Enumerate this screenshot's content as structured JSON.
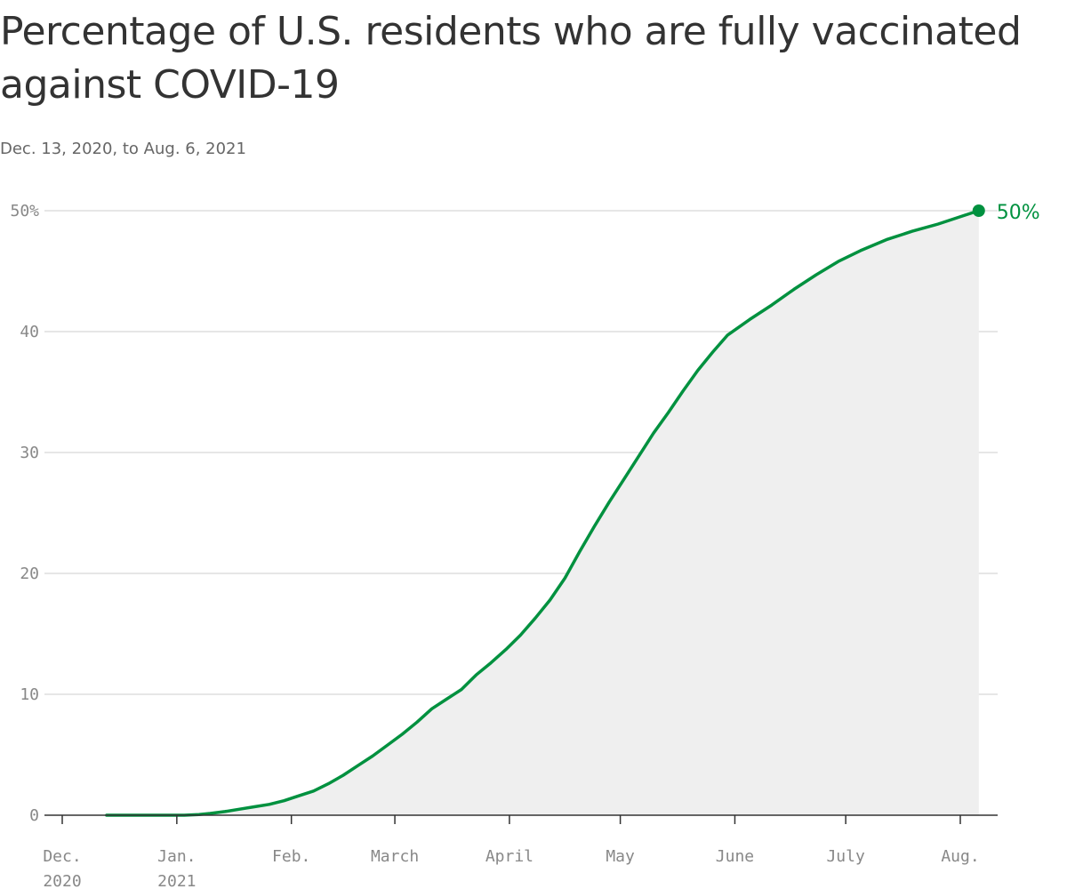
{
  "title": "Percentage of U.S. residents who are fully vaccinated against COVID-19",
  "subtitle": "Dec. 13, 2020, to Aug. 6, 2021",
  "colors": {
    "line": "#00913f",
    "area": "#efefef",
    "grid": "#dddddd",
    "axis": "#333333",
    "tick_text": "#888888"
  },
  "chart_data": {
    "type": "area",
    "ylim": [
      0,
      50
    ],
    "grid": true,
    "y_ticks": [
      {
        "value": 0,
        "label": "0"
      },
      {
        "value": 10,
        "label": "10"
      },
      {
        "value": 20,
        "label": "20"
      },
      {
        "value": 30,
        "label": "30"
      },
      {
        "value": 40,
        "label": "40"
      },
      {
        "value": 50,
        "label": "50%"
      }
    ],
    "x_ticks": [
      {
        "date": "2020-12-01",
        "label": [
          "Dec.",
          "2020"
        ]
      },
      {
        "date": "2021-01-01",
        "label": [
          "Jan.",
          "2021"
        ]
      },
      {
        "date": "2021-02-01",
        "label": [
          "Feb."
        ]
      },
      {
        "date": "2021-03-01",
        "label": [
          "March"
        ]
      },
      {
        "date": "2021-04-01",
        "label": [
          "April"
        ]
      },
      {
        "date": "2021-05-01",
        "label": [
          "May"
        ]
      },
      {
        "date": "2021-06-01",
        "label": [
          "June"
        ]
      },
      {
        "date": "2021-07-01",
        "label": [
          "July"
        ]
      },
      {
        "date": "2021-08-01",
        "label": [
          "Aug."
        ]
      }
    ],
    "end_label": "50%",
    "series": [
      {
        "x": [
          "2020-12-13",
          "2020-12-20",
          "2020-12-27",
          "2021-01-03",
          "2021-01-07",
          "2021-01-10",
          "2021-01-14",
          "2021-01-18",
          "2021-01-22",
          "2021-01-26",
          "2021-01-30",
          "2021-02-03",
          "2021-02-07",
          "2021-02-11",
          "2021-02-15",
          "2021-02-19",
          "2021-02-23",
          "2021-02-27",
          "2021-03-03",
          "2021-03-07",
          "2021-03-11",
          "2021-03-15",
          "2021-03-19",
          "2021-03-23",
          "2021-03-27",
          "2021-03-31",
          "2021-04-04",
          "2021-04-08",
          "2021-04-12",
          "2021-04-16",
          "2021-04-20",
          "2021-04-24",
          "2021-04-28",
          "2021-05-02",
          "2021-05-06",
          "2021-05-10",
          "2021-05-14",
          "2021-05-18",
          "2021-05-22",
          "2021-05-26",
          "2021-05-30",
          "2021-06-05",
          "2021-06-11",
          "2021-06-17",
          "2021-06-23",
          "2021-06-29",
          "2021-07-05",
          "2021-07-12",
          "2021-07-19",
          "2021-07-26",
          "2021-08-02",
          "2021-08-06"
        ],
        "y": [
          0,
          0,
          0,
          0,
          0.05,
          0.15,
          0.3,
          0.5,
          0.7,
          0.9,
          1.2,
          1.6,
          2.0,
          2.6,
          3.3,
          4.1,
          4.9,
          5.8,
          6.7,
          7.7,
          8.8,
          9.6,
          10.4,
          11.6,
          12.6,
          13.7,
          14.9,
          16.3,
          17.8,
          19.6,
          21.8,
          23.9,
          25.9,
          27.8,
          29.7,
          31.6,
          33.3,
          35.1,
          36.8,
          38.3,
          39.7,
          41.0,
          42.2,
          43.5,
          44.7,
          45.8,
          46.7,
          47.6,
          48.3,
          48.9,
          49.6,
          50.0
        ]
      }
    ]
  }
}
